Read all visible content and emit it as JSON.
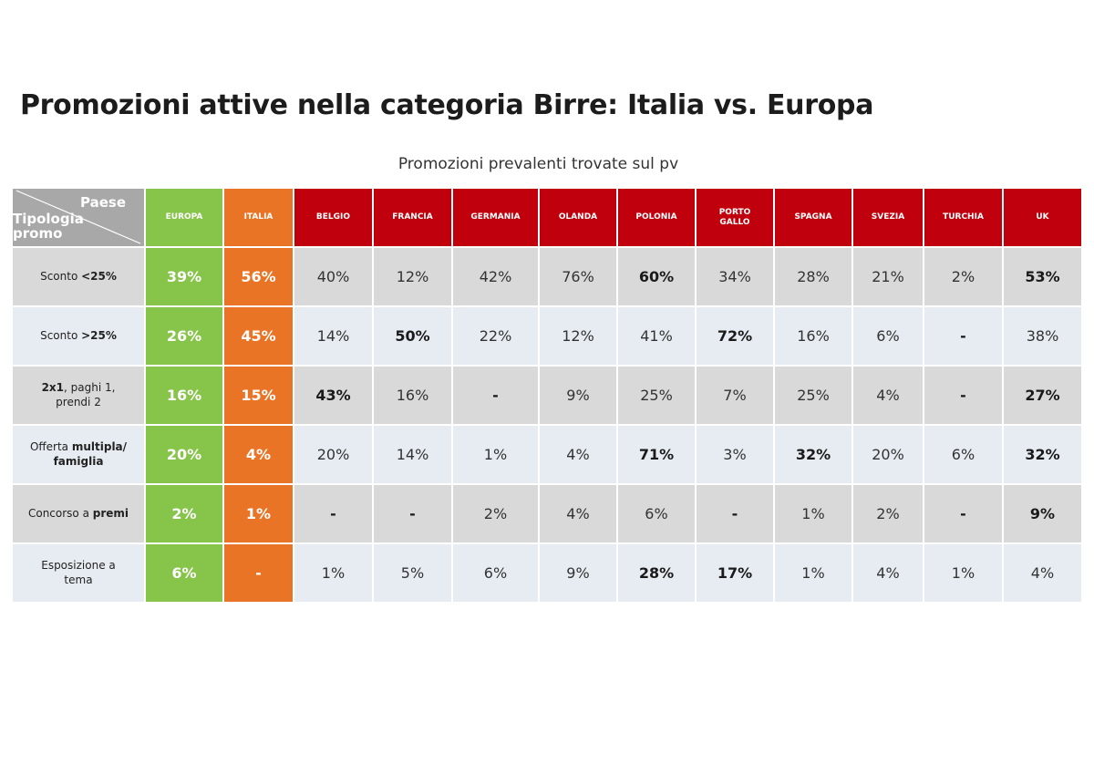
{
  "title": "Promozioni attive nella categoria Birre: Italia vs. Europa",
  "subtitle": "Promozioni prevalenti trovate sul pv",
  "corner": {
    "col_label": "Paese",
    "row_label_1": "Tipologia",
    "row_label_2": "promo"
  },
  "colors": {
    "europa": "#86c44a",
    "italia": "#ea7426",
    "country": "#c0000c",
    "corner": "#a8a8a8",
    "row_odd": "#d9d9d9",
    "row_even": "#e6ecf1"
  },
  "chart_data": {
    "type": "table",
    "title": "Promozioni attive nella categoria Birre: Italia vs. Europa",
    "subtitle": "Promozioni prevalenti trovate sul pv",
    "columns": [
      {
        "label": "EUROPA",
        "group": "europa"
      },
      {
        "label": "ITALIA",
        "group": "italia"
      },
      {
        "label": "BELGIO",
        "group": "country"
      },
      {
        "label": "FRANCIA",
        "group": "country"
      },
      {
        "label": "GERMANIA",
        "group": "country"
      },
      {
        "label": "OLANDA",
        "group": "country"
      },
      {
        "label": "POLONIA",
        "group": "country"
      },
      {
        "label": "PORTO\nGALLO",
        "group": "country"
      },
      {
        "label": "SPAGNA",
        "group": "country"
      },
      {
        "label": "SVEZIA",
        "group": "country"
      },
      {
        "label": "TURCHIA",
        "group": "country"
      },
      {
        "label": "UK",
        "group": "country"
      }
    ],
    "rows": [
      {
        "label_parts": [
          {
            "t": "Sconto "
          },
          {
            "t": "<25%",
            "b": true
          }
        ],
        "values": [
          "39%",
          "56%",
          "40%",
          "12%",
          "42%",
          "76%",
          "60%",
          "34%",
          "28%",
          "21%",
          "2%",
          "53%"
        ],
        "bold": [
          false,
          false,
          false,
          false,
          false,
          false,
          true,
          false,
          false,
          false,
          false,
          true
        ]
      },
      {
        "label_parts": [
          {
            "t": "Sconto "
          },
          {
            "t": ">25%",
            "b": true
          }
        ],
        "values": [
          "26%",
          "45%",
          "14%",
          "50%",
          "22%",
          "12%",
          "41%",
          "72%",
          "16%",
          "6%",
          "-",
          "38%"
        ],
        "bold": [
          false,
          false,
          false,
          true,
          false,
          false,
          false,
          true,
          false,
          false,
          true,
          false
        ]
      },
      {
        "label_parts": [
          {
            "t": "2x1",
            "b": true
          },
          {
            "t": ", paghi 1,\nprendi 2"
          }
        ],
        "values": [
          "16%",
          "15%",
          "43%",
          "16%",
          "-",
          "9%",
          "25%",
          "7%",
          "25%",
          "4%",
          "-",
          "27%"
        ],
        "bold": [
          false,
          false,
          true,
          false,
          true,
          false,
          false,
          false,
          false,
          false,
          true,
          true
        ]
      },
      {
        "label_parts": [
          {
            "t": "Offerta "
          },
          {
            "t": "multipla/\nfamiglia",
            "b": true
          }
        ],
        "values": [
          "20%",
          "4%",
          "20%",
          "14%",
          "1%",
          "4%",
          "71%",
          "3%",
          "32%",
          "20%",
          "6%",
          "32%"
        ],
        "bold": [
          false,
          false,
          false,
          false,
          false,
          false,
          true,
          false,
          true,
          false,
          false,
          true
        ]
      },
      {
        "label_parts": [
          {
            "t": "Concorso a "
          },
          {
            "t": "premi",
            "b": true
          }
        ],
        "values": [
          "2%",
          "1%",
          "-",
          "-",
          "2%",
          "4%",
          "6%",
          "-",
          "1%",
          "2%",
          "-",
          "9%"
        ],
        "bold": [
          false,
          false,
          true,
          true,
          false,
          false,
          false,
          true,
          false,
          false,
          true,
          true
        ]
      },
      {
        "label_parts": [
          {
            "t": "Esposizione a\ntema"
          }
        ],
        "values": [
          "6%",
          "-",
          "1%",
          "5%",
          "6%",
          "9%",
          "28%",
          "17%",
          "1%",
          "4%",
          "1%",
          "4%"
        ],
        "bold": [
          false,
          false,
          false,
          false,
          false,
          false,
          true,
          true,
          false,
          false,
          false,
          false
        ]
      }
    ]
  }
}
